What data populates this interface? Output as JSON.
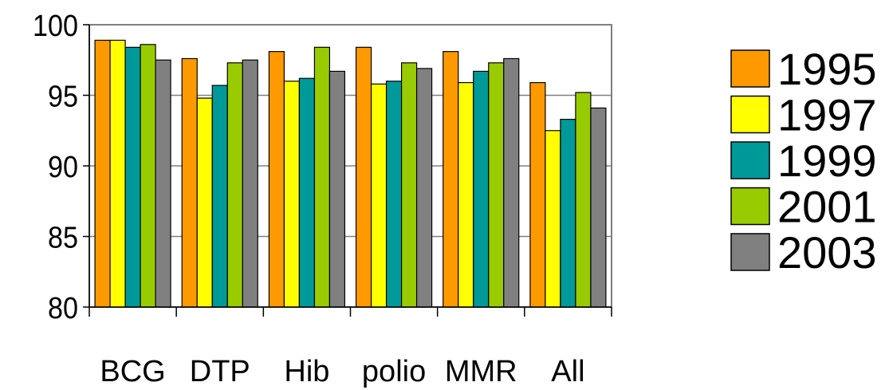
{
  "chart_data": {
    "type": "bar",
    "categories": [
      "BCG",
      "DTP",
      "Hib",
      "polio",
      "MMR",
      "All"
    ],
    "ylim": [
      80,
      100
    ],
    "yticks": [
      80,
      85,
      90,
      95,
      100
    ],
    "grid": true,
    "legend_position": "right",
    "series": [
      {
        "name": "1995",
        "color": "#ff9900",
        "values": [
          98.9,
          97.6,
          98.1,
          98.4,
          98.1,
          95.9
        ]
      },
      {
        "name": "1997",
        "color": "#ffff00",
        "values": [
          98.9,
          94.8,
          96.0,
          95.8,
          95.9,
          92.5
        ]
      },
      {
        "name": "1999",
        "color": "#009999",
        "values": [
          98.4,
          95.7,
          96.2,
          96.0,
          96.7,
          93.3
        ]
      },
      {
        "name": "2001",
        "color": "#99cc00",
        "values": [
          98.6,
          97.3,
          98.4,
          97.3,
          97.3,
          95.2
        ]
      },
      {
        "name": "2003",
        "color": "#808080",
        "values": [
          97.5,
          97.5,
          96.7,
          96.9,
          97.6,
          94.1
        ]
      }
    ]
  }
}
